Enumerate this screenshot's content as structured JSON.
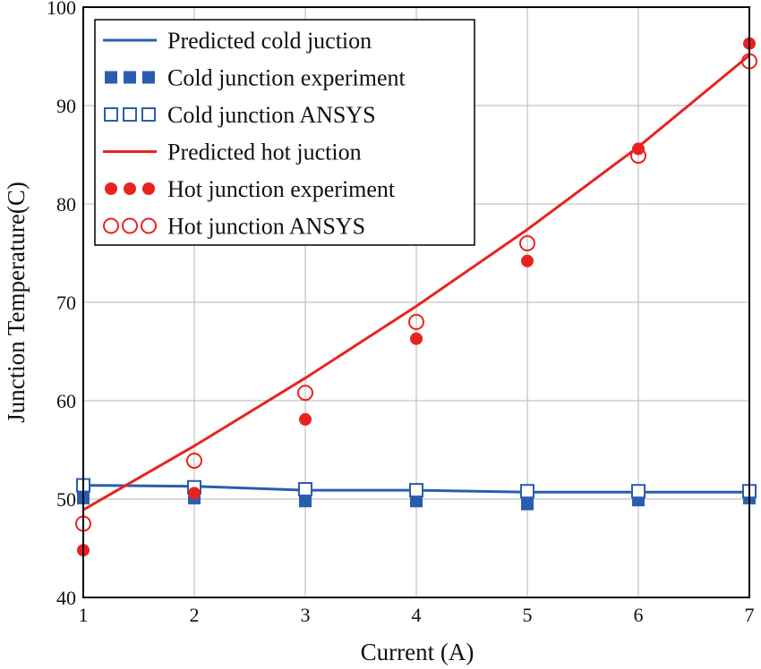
{
  "chart_data": {
    "type": "line",
    "xlabel": "Current (A)",
    "ylabel": "Junction Temperature(C)",
    "xlim": [
      1,
      7
    ],
    "ylim": [
      40,
      100
    ],
    "x_ticks": [
      "1",
      "2",
      "3",
      "4",
      "5",
      "6",
      "7"
    ],
    "y_ticks": [
      "40",
      "50",
      "60",
      "70",
      "80",
      "90",
      "100"
    ],
    "grid": true,
    "legend_position": "top-left",
    "series": [
      {
        "name": "Predicted cold juction",
        "kind": "line",
        "color": "#2a5db0",
        "x": [
          1,
          2,
          3,
          4,
          5,
          6,
          7
        ],
        "y": [
          51.4,
          51.3,
          50.9,
          50.9,
          50.7,
          50.7,
          50.7
        ]
      },
      {
        "name": "Cold junction experiment",
        "kind": "filled-square",
        "color": "#2a5db0",
        "x": [
          1,
          2,
          3,
          4,
          5,
          6,
          7
        ],
        "y": [
          50.1,
          50.1,
          49.8,
          49.8,
          49.5,
          49.9,
          50.1
        ]
      },
      {
        "name": "Cold junction ANSYS",
        "kind": "open-square",
        "color": "#2a5db0",
        "x": [
          1,
          2,
          3,
          4,
          5,
          6,
          7
        ],
        "y": [
          51.4,
          51.2,
          51.0,
          50.9,
          50.8,
          50.8,
          50.8
        ]
      },
      {
        "name": "Predicted hot juction",
        "kind": "line",
        "color": "#e8231f",
        "x": [
          1,
          2,
          3,
          4,
          5,
          6,
          7
        ],
        "y": [
          48.9,
          55.4,
          62.3,
          69.6,
          77.4,
          85.8,
          95.1
        ]
      },
      {
        "name": "Hot junction experiment",
        "kind": "filled-circle",
        "color": "#e8231f",
        "x": [
          1,
          2,
          3,
          4,
          5,
          6,
          7
        ],
        "y": [
          44.8,
          50.6,
          58.1,
          66.3,
          74.2,
          85.6,
          96.3
        ]
      },
      {
        "name": "Hot junction ANSYS",
        "kind": "open-circle",
        "color": "#e8231f",
        "x": [
          1,
          2,
          3,
          4,
          5,
          6,
          7
        ],
        "y": [
          47.5,
          53.9,
          60.8,
          68.0,
          76.0,
          84.9,
          94.5
        ]
      }
    ]
  }
}
